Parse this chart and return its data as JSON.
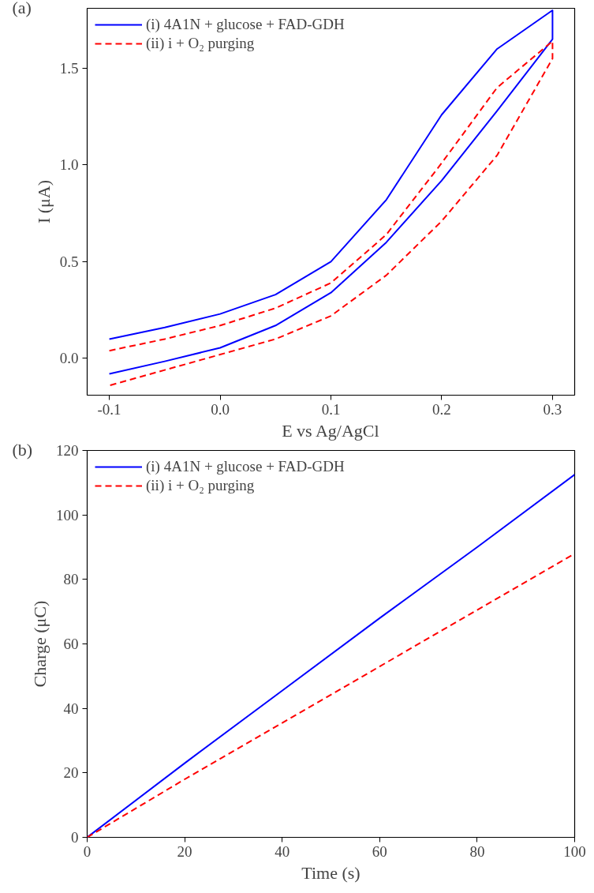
{
  "chart_data": [
    {
      "type": "line",
      "xlabel": "E vs Ag/AgCl",
      "ylabel": "I (μA)",
      "annotations": [
        "(a)"
      ],
      "xlim": [
        -0.12,
        0.32
      ],
      "ylim": [
        -0.19,
        1.81
      ],
      "xticks": [
        {
          "value": -0.1,
          "label": "-0.1"
        },
        {
          "value": 0,
          "label": "0.0"
        },
        0.1,
        0.2,
        0.3
      ],
      "yticks": [
        {
          "value": 0,
          "label": "0.0"
        },
        0.5,
        {
          "value": 1,
          "label": "1.0"
        },
        1.5
      ],
      "grid": false,
      "legend": "top left",
      "series": [
        {
          "name": "(i) 4A1N + glucose + FAD-GDH",
          "color": "#0000ff",
          "line_style": "solid",
          "x": [
            -0.1,
            -0.05,
            0,
            0.05,
            0.1,
            0.15,
            0.2,
            0.25,
            0.3,
            0.3,
            0.25,
            0.2,
            0.15,
            0.1,
            0.05,
            0,
            -0.05,
            -0.1
          ],
          "values": [
            0.1,
            0.16,
            0.23,
            0.33,
            0.5,
            0.82,
            1.26,
            1.6,
            1.8,
            1.65,
            1.28,
            0.92,
            0.6,
            0.34,
            0.17,
            0.055,
            -0.015,
            -0.08
          ]
        },
        {
          "name": "(ii) i + O₂ purging",
          "color": "#ff0000",
          "line_style": "dashed",
          "x": [
            -0.1,
            -0.05,
            0,
            0.05,
            0.1,
            0.15,
            0.2,
            0.25,
            0.3,
            0.3,
            0.25,
            0.2,
            0.15,
            0.1,
            0.05,
            0,
            -0.05,
            -0.1
          ],
          "values": [
            0.04,
            0.1,
            0.17,
            0.26,
            0.39,
            0.64,
            1.01,
            1.4,
            1.64,
            1.55,
            1.05,
            0.71,
            0.43,
            0.22,
            0.1,
            0.02,
            -0.06,
            -0.14
          ]
        }
      ]
    },
    {
      "type": "line",
      "xlabel": "Time (s)",
      "ylabel": "Charge (μC)",
      "annotations": [
        "(b)"
      ],
      "xlim": [
        0,
        100
      ],
      "ylim": [
        0,
        120
      ],
      "xticks": [
        0,
        20,
        40,
        60,
        80,
        100
      ],
      "yticks": [
        0,
        20,
        40,
        60,
        80,
        100,
        120
      ],
      "grid": false,
      "legend": "top left",
      "series": [
        {
          "name": "(i) 4A1N + glucose + FAD-GDH",
          "color": "#0000ff",
          "line_style": "solid",
          "x": [
            0,
            20,
            40,
            60,
            80,
            100
          ],
          "values": [
            0,
            23,
            45.5,
            68,
            90,
            112.5
          ]
        },
        {
          "name": "(ii) i + O₂ purging",
          "color": "#ff0000",
          "line_style": "dashed",
          "x": [
            0,
            20,
            40,
            60,
            80,
            100
          ],
          "values": [
            0,
            18,
            35.5,
            53,
            70.5,
            88
          ]
        }
      ]
    }
  ]
}
